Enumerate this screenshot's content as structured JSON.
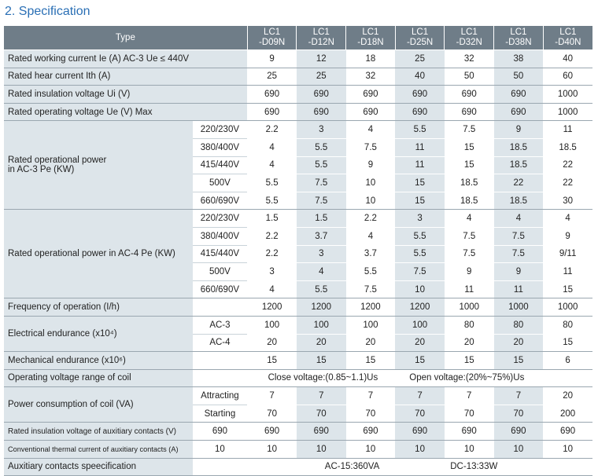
{
  "section_title": "2. Specification",
  "header": {
    "type_label": "Type",
    "models": [
      [
        "LC1",
        "-D09N"
      ],
      [
        "LC1",
        "-D12N"
      ],
      [
        "LC1",
        "-D18N"
      ],
      [
        "LC1",
        "-D25N"
      ],
      [
        "LC1",
        "-D32N"
      ],
      [
        "LC1",
        "-D38N"
      ],
      [
        "LC1",
        "-D40N"
      ]
    ]
  },
  "rows": {
    "rated_working_current": {
      "label": "Rated working current Ie (A)   AC-3 Ue ≤ 440V",
      "values": [
        "9",
        "12",
        "18",
        "25",
        "32",
        "38",
        "40"
      ]
    },
    "rated_heat_current": {
      "label": "Rated hear current Ith (A)",
      "values": [
        "25",
        "25",
        "32",
        "40",
        "50",
        "50",
        "60"
      ]
    },
    "rated_insulation_voltage": {
      "label": "Rated insulation voltage Ui (V)",
      "values": [
        "690",
        "690",
        "690",
        "690",
        "690",
        "690",
        "1000"
      ]
    },
    "rated_operating_voltage": {
      "label": "Rated operating voltage Ue (V) Max",
      "values": [
        "690",
        "690",
        "690",
        "690",
        "690",
        "690",
        "1000"
      ]
    },
    "ac3_power": {
      "label_line1": "Rated operational power",
      "label_line2": "in AC-3 Pe (KW)",
      "rows": [
        {
          "voltage": "220/230V",
          "values": [
            "2.2",
            "3",
            "4",
            "5.5",
            "7.5",
            "9",
            "11"
          ]
        },
        {
          "voltage": "380/400V",
          "values": [
            "4",
            "5.5",
            "7.5",
            "11",
            "15",
            "18.5",
            "18.5"
          ]
        },
        {
          "voltage": "415/440V",
          "values": [
            "4",
            "5.5",
            "9",
            "11",
            "15",
            "18.5",
            "22"
          ]
        },
        {
          "voltage": "500V",
          "values": [
            "5.5",
            "7.5",
            "10",
            "15",
            "18.5",
            "22",
            "22"
          ]
        },
        {
          "voltage": "660/690V",
          "values": [
            "5.5",
            "7.5",
            "10",
            "15",
            "18.5",
            "18.5",
            "30"
          ]
        }
      ]
    },
    "ac4_power": {
      "label": "Rated operational power in AC-4 Pe (KW)",
      "rows": [
        {
          "voltage": "220/230V",
          "values": [
            "1.5",
            "1.5",
            "2.2",
            "3",
            "4",
            "4",
            "4"
          ]
        },
        {
          "voltage": "380/400V",
          "values": [
            "2.2",
            "3.7",
            "4",
            "5.5",
            "7.5",
            "7.5",
            "9"
          ]
        },
        {
          "voltage": "415/440V",
          "values": [
            "2.2",
            "3",
            "3.7",
            "5.5",
            "7.5",
            "7.5",
            "9/11"
          ]
        },
        {
          "voltage": "500V",
          "values": [
            "3",
            "4",
            "5.5",
            "7.5",
            "9",
            "9",
            "11"
          ]
        },
        {
          "voltage": "660/690V",
          "values": [
            "4",
            "5.5",
            "7.5",
            "10",
            "11",
            "11",
            "15"
          ]
        }
      ]
    },
    "frequency": {
      "label": "Frequency of operation (I/h)",
      "values": [
        "1200",
        "1200",
        "1200",
        "1200",
        "1000",
        "1000",
        "1000"
      ]
    },
    "electrical_endurance": {
      "label": "Electrical endurance (x10⁴)",
      "rows": [
        {
          "sub": "AC-3",
          "values": [
            "100",
            "100",
            "100",
            "100",
            "80",
            "80",
            "80"
          ]
        },
        {
          "sub": "AC-4",
          "values": [
            "20",
            "20",
            "20",
            "20",
            "20",
            "20",
            "15"
          ]
        }
      ]
    },
    "mechanical_endurance": {
      "label": "Mechanical endurance (x10⁶)",
      "values": [
        "15",
        "15",
        "15",
        "15",
        "15",
        "15",
        "6"
      ]
    },
    "coil_voltage_range": {
      "label": "Operating voltage range of coil",
      "close": "Close voltage:(0.85~1.1)Us",
      "open": "Open voltage:(20%~75%)Us"
    },
    "coil_power": {
      "label": "Power consumption of coil (VA)",
      "rows": [
        {
          "sub": "Attracting",
          "values": [
            "7",
            "7",
            "7",
            "7",
            "7",
            "7",
            "20"
          ]
        },
        {
          "sub": "Starting",
          "values": [
            "70",
            "70",
            "70",
            "70",
            "70",
            "70",
            "200"
          ]
        }
      ]
    },
    "aux_insulation_voltage": {
      "label": "Rated insulation voltage of auxitiary contacts (V)",
      "sub": "690",
      "values": [
        "690",
        "690",
        "690",
        "690",
        "690",
        "690",
        "690"
      ]
    },
    "aux_thermal_current": {
      "label": "Conventional thermal current of auxitiary contacts (A)",
      "sub": "10",
      "values": [
        "10",
        "10",
        "10",
        "10",
        "10",
        "10",
        "10"
      ]
    },
    "aux_specification": {
      "label": "Auxitiary contacts speecification",
      "ac": "AC-15:360VA",
      "dc": "DC-13:33W"
    }
  }
}
